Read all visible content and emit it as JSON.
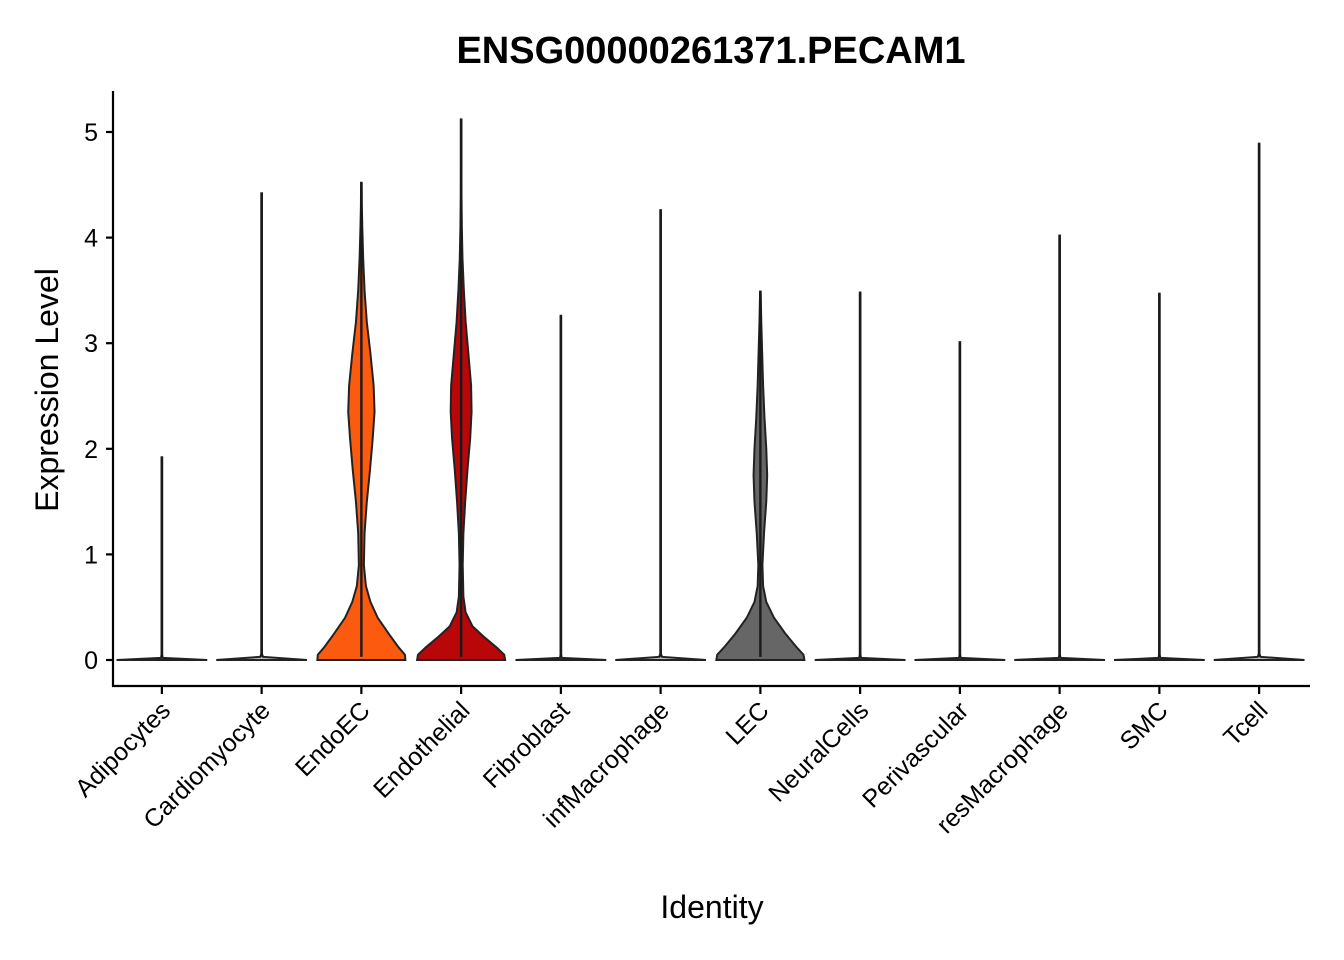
{
  "chart_data": {
    "type": "violin",
    "title": "ENSG00000261371.PECAM1",
    "xlabel": "Identity",
    "ylabel": "Expression Level",
    "ylim": [
      -0.25,
      5.4
    ],
    "yticks": [
      0,
      1,
      2,
      3,
      4,
      5
    ],
    "grid": false,
    "legend": "none",
    "categories": [
      "Adipocytes",
      "Cardiomyocyte",
      "EndoEC",
      "Endothelial",
      "Fibroblast",
      "infMacrophage",
      "LEC",
      "NeuralCells",
      "Perivascular",
      "resMacrophage",
      "SMC",
      "Tcell"
    ],
    "series": [
      {
        "name": "Adipocytes",
        "color": "#bdbdbd",
        "max": 1.92,
        "density": [
          [
            0,
            1.0
          ],
          [
            0.02,
            0.02
          ],
          [
            0.05,
            0.005
          ],
          [
            1.92,
            0.005
          ]
        ]
      },
      {
        "name": "Cardiomyocyte",
        "color": "#bdbdbd",
        "max": 4.42,
        "density": [
          [
            0,
            1.0
          ],
          [
            0.03,
            0.03
          ],
          [
            0.06,
            0.005
          ],
          [
            4.42,
            0.005
          ]
        ]
      },
      {
        "name": "EndoEC",
        "color": "#fc5a0e",
        "max": 4.52,
        "density": [
          [
            0,
            0.97
          ],
          [
            0.05,
            0.96
          ],
          [
            0.12,
            0.82
          ],
          [
            0.25,
            0.6
          ],
          [
            0.4,
            0.36
          ],
          [
            0.55,
            0.2
          ],
          [
            0.7,
            0.1
          ],
          [
            0.9,
            0.055
          ],
          [
            1.2,
            0.07
          ],
          [
            1.5,
            0.12
          ],
          [
            1.8,
            0.19
          ],
          [
            2.1,
            0.25
          ],
          [
            2.35,
            0.29
          ],
          [
            2.6,
            0.27
          ],
          [
            2.9,
            0.2
          ],
          [
            3.2,
            0.12
          ],
          [
            3.5,
            0.07
          ],
          [
            3.8,
            0.04
          ],
          [
            4.1,
            0.02
          ],
          [
            4.3,
            0.01
          ],
          [
            4.52,
            0.003
          ]
        ]
      },
      {
        "name": "Endothelial",
        "color": "#b80609",
        "max": 5.12,
        "density": [
          [
            0,
            0.97
          ],
          [
            0.05,
            0.95
          ],
          [
            0.12,
            0.78
          ],
          [
            0.22,
            0.5
          ],
          [
            0.32,
            0.25
          ],
          [
            0.45,
            0.1
          ],
          [
            0.6,
            0.05
          ],
          [
            0.9,
            0.035
          ],
          [
            1.2,
            0.05
          ],
          [
            1.5,
            0.09
          ],
          [
            1.8,
            0.14
          ],
          [
            2.1,
            0.2
          ],
          [
            2.35,
            0.23
          ],
          [
            2.6,
            0.22
          ],
          [
            2.9,
            0.16
          ],
          [
            3.2,
            0.1
          ],
          [
            3.5,
            0.06
          ],
          [
            3.8,
            0.03
          ],
          [
            4.1,
            0.015
          ],
          [
            4.4,
            0.008
          ],
          [
            4.7,
            0.004
          ],
          [
            5.12,
            0.002
          ]
        ]
      },
      {
        "name": "Fibroblast",
        "color": "#bdbdbd",
        "max": 3.26,
        "density": [
          [
            0,
            1.0
          ],
          [
            0.02,
            0.02
          ],
          [
            0.05,
            0.005
          ],
          [
            3.26,
            0.005
          ]
        ]
      },
      {
        "name": "infMacrophage",
        "color": "#bdbdbd",
        "max": 4.26,
        "density": [
          [
            0,
            1.0
          ],
          [
            0.03,
            0.03
          ],
          [
            0.06,
            0.005
          ],
          [
            4.26,
            0.005
          ]
        ]
      },
      {
        "name": "LEC",
        "color": "#666666",
        "max": 3.49,
        "density": [
          [
            0,
            0.97
          ],
          [
            0.05,
            0.95
          ],
          [
            0.12,
            0.8
          ],
          [
            0.25,
            0.55
          ],
          [
            0.4,
            0.3
          ],
          [
            0.55,
            0.13
          ],
          [
            0.7,
            0.06
          ],
          [
            0.9,
            0.045
          ],
          [
            1.2,
            0.08
          ],
          [
            1.5,
            0.13
          ],
          [
            1.75,
            0.15
          ],
          [
            2.0,
            0.13
          ],
          [
            2.3,
            0.09
          ],
          [
            2.6,
            0.06
          ],
          [
            2.9,
            0.04
          ],
          [
            3.2,
            0.02
          ],
          [
            3.49,
            0.005
          ]
        ]
      },
      {
        "name": "NeuralCells",
        "color": "#bdbdbd",
        "max": 3.48,
        "density": [
          [
            0,
            1.0
          ],
          [
            0.02,
            0.02
          ],
          [
            0.05,
            0.005
          ],
          [
            3.48,
            0.005
          ]
        ]
      },
      {
        "name": "Perivascular",
        "color": "#bdbdbd",
        "max": 3.01,
        "density": [
          [
            0,
            1.0
          ],
          [
            0.02,
            0.02
          ],
          [
            0.05,
            0.005
          ],
          [
            3.01,
            0.005
          ]
        ]
      },
      {
        "name": "resMacrophage",
        "color": "#bdbdbd",
        "max": 4.02,
        "density": [
          [
            0,
            1.0
          ],
          [
            0.02,
            0.02
          ],
          [
            0.05,
            0.005
          ],
          [
            4.02,
            0.005
          ]
        ]
      },
      {
        "name": "SMC",
        "color": "#bdbdbd",
        "max": 3.47,
        "density": [
          [
            0,
            1.0
          ],
          [
            0.02,
            0.02
          ],
          [
            0.05,
            0.005
          ],
          [
            3.47,
            0.005
          ]
        ]
      },
      {
        "name": "Tcell",
        "color": "#bdbdbd",
        "max": 4.89,
        "density": [
          [
            0,
            1.0
          ],
          [
            0.03,
            0.03
          ],
          [
            0.06,
            0.005
          ],
          [
            4.89,
            0.005
          ]
        ]
      }
    ]
  }
}
